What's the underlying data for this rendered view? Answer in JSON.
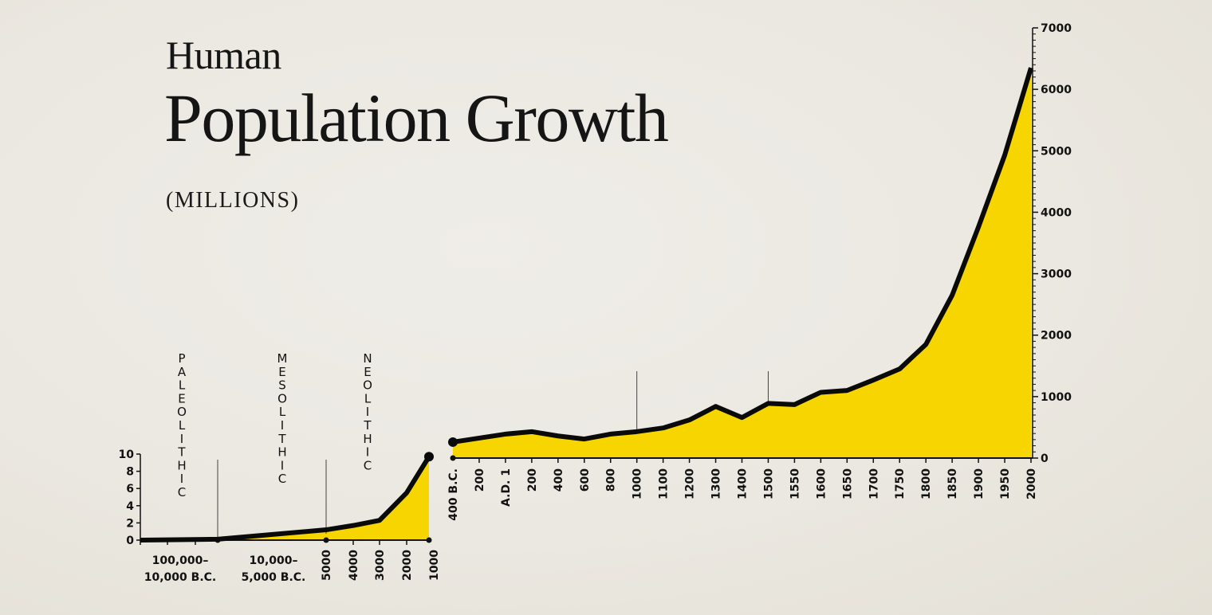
{
  "title": {
    "line1": "Human",
    "line2": "Population Growth",
    "unit": "(MILLIONS)"
  },
  "colors": {
    "fill": "#f6d500",
    "line": "#0a0a0a",
    "background": "#ece9e2"
  },
  "chart_data": [
    {
      "type": "area",
      "title": "Human Population Growth (prehistoric)",
      "ylabel": "Millions",
      "ylim": [
        0,
        10
      ],
      "yticks": [
        0,
        2,
        4,
        6,
        8,
        10
      ],
      "grid": false,
      "xtick_labels": [
        {
          "label": "100,000–\n10,000 B.C.",
          "orientation": "horizontal"
        },
        {
          "label": "10,000–\n5,000 B.C.",
          "orientation": "horizontal"
        },
        {
          "label": "5000",
          "orientation": "vertical"
        },
        {
          "label": "4000",
          "orientation": "vertical"
        },
        {
          "label": "3000",
          "orientation": "vertical"
        },
        {
          "label": "2000",
          "orientation": "vertical"
        },
        {
          "label": "1000",
          "orientation": "vertical"
        }
      ],
      "eras": [
        "PALEOLITHIC",
        "MESOLITHIC",
        "NEOLITHIC"
      ],
      "x": [
        "100,000 B.C.",
        "10,000 B.C.",
        "5000 B.C.",
        "4000 B.C.",
        "3000 B.C.",
        "2000 B.C.",
        "1000 B.C."
      ],
      "values": [
        0,
        0.1,
        1.2,
        1.7,
        2.3,
        5.5,
        9.7
      ]
    },
    {
      "type": "area",
      "title": "Human Population Growth (historic)",
      "ylabel": "Millions",
      "ylim": [
        0,
        7000
      ],
      "yticks": [
        0,
        1000,
        2000,
        3000,
        4000,
        5000,
        6000,
        7000
      ],
      "y_axis_position": "right",
      "grid": false,
      "categories": [
        "400 B.C.",
        "200",
        "A.D. 1",
        "200",
        "400",
        "600",
        "800",
        "1000",
        "1100",
        "1200",
        "1300",
        "1400",
        "1500",
        "1550",
        "1600",
        "1650",
        "1700",
        "1750",
        "1800",
        "1850",
        "1900",
        "1950",
        "2000"
      ],
      "values": [
        260,
        325,
        390,
        430,
        360,
        310,
        390,
        430,
        490,
        620,
        840,
        660,
        890,
        870,
        1070,
        1100,
        1270,
        1450,
        1850,
        2650,
        3760,
        4930,
        6350
      ],
      "markers": [
        "1000",
        "1500"
      ]
    }
  ]
}
